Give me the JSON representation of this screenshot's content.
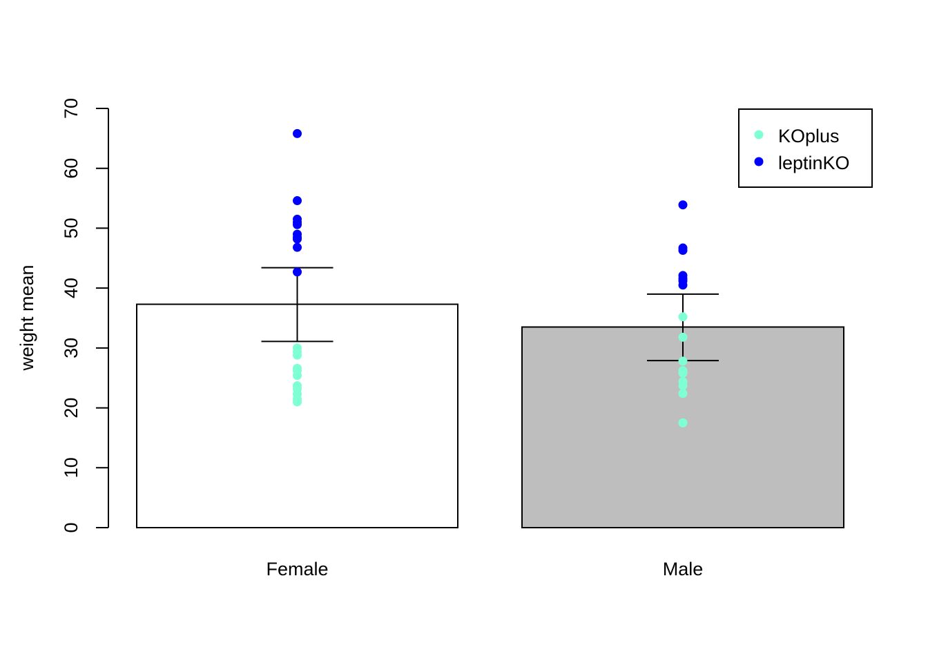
{
  "chart_data": {
    "type": "bar",
    "title": "",
    "xlabel": "",
    "ylabel": "weight mean",
    "ylim": [
      0,
      70
    ],
    "yticks": [
      "0",
      "10",
      "20",
      "30",
      "40",
      "50",
      "60",
      "70"
    ],
    "ytick_values": [
      0,
      10,
      20,
      30,
      40,
      50,
      60,
      70
    ],
    "grid": false,
    "categories": [
      "Female",
      "Male"
    ],
    "bar_colors": [
      "#FFFFFF",
      "#BEBEBE"
    ],
    "values": [
      37.3,
      33.5
    ],
    "error_bars": [
      {
        "lower": 31.1,
        "upper": 43.4
      },
      {
        "lower": 27.9,
        "upper": 39.0
      }
    ],
    "series": [
      {
        "name": "KOplus",
        "color": "#7FFFD4",
        "points": {
          "Female": [
            30.0,
            29.4,
            28.8,
            26.6,
            26.2,
            25.4,
            23.7,
            23.2,
            22.3,
            21.5,
            21.0
          ],
          "Male": [
            35.2,
            31.8,
            27.8,
            26.2,
            25.8,
            24.4,
            23.7,
            22.4,
            17.5
          ]
        }
      },
      {
        "name": "leptinKO",
        "color": "#0000FF",
        "points": {
          "Female": [
            65.8,
            54.6,
            51.5,
            51.0,
            50.6,
            49.0,
            48.5,
            48.2,
            46.8,
            42.7
          ],
          "Male": [
            53.9,
            46.7,
            46.3,
            42.1,
            41.6,
            41.2,
            40.5
          ]
        }
      }
    ],
    "legend": {
      "placement": "top-right",
      "entries": [
        "KOplus",
        "leptinKO"
      ]
    }
  }
}
